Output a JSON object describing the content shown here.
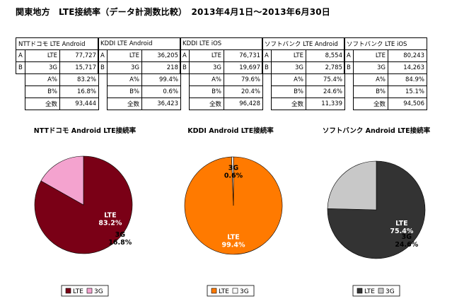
{
  "title": "関東地方　LTE接続率（データ計測数比較）　2013年4月1日～2013年6月30日",
  "tables": [
    {
      "header": "NTTドコモ LTE Android",
      "rows": [
        [
          "A",
          "LTE",
          "77,727"
        ],
        [
          "B",
          "3G",
          "15,717"
        ]
      ],
      "stats": [
        [
          "A%",
          "83.2%"
        ],
        [
          "B%",
          "16.8%"
        ],
        [
          "全数",
          "93,444"
        ]
      ]
    },
    {
      "header": "KDDI LTE Android",
      "rows": [
        [
          "A",
          "LTE",
          "36,205"
        ],
        [
          "B",
          "3G",
          "218"
        ]
      ],
      "stats": [
        [
          "A%",
          "99.4%"
        ],
        [
          "B%",
          "0.6%"
        ],
        [
          "全数",
          "36,423"
        ]
      ]
    },
    {
      "header": "KDDI LTE iOS",
      "rows": [
        [
          "A",
          "LTE",
          "76,731"
        ],
        [
          "B",
          "3G",
          "19,697"
        ]
      ],
      "stats": [
        [
          "A%",
          "79.6%"
        ],
        [
          "B%",
          "20.4%"
        ],
        [
          "全数",
          "96,428"
        ]
      ]
    },
    {
      "header": "ソフトバンク LTE Android",
      "rows": [
        [
          "A",
          "LTE",
          "8,554"
        ],
        [
          "B",
          "3G",
          "2,785"
        ]
      ],
      "stats": [
        [
          "A%",
          "75.4%"
        ],
        [
          "B%",
          "24.6%"
        ],
        [
          "全数",
          "11,339"
        ]
      ]
    },
    {
      "header": "ソフトバンク LTE iOS",
      "rows": [
        [
          "A",
          "LTE",
          "80,243"
        ],
        [
          "B",
          "3G",
          "14,263"
        ]
      ],
      "stats": [
        [
          "A%",
          "84.9%"
        ],
        [
          "B%",
          "15.1%"
        ],
        [
          "全数",
          "94,506"
        ]
      ]
    }
  ],
  "chart_data": [
    {
      "type": "pie",
      "title": "NTTドコモ Android LTE接続率",
      "slices": [
        {
          "name": "LTE",
          "value": 83.2,
          "label": "83.2%",
          "color": "#7a0016"
        },
        {
          "name": "3G",
          "value": 16.8,
          "label": "16.8%",
          "color": "#f4a3cf"
        }
      ]
    },
    {
      "type": "pie",
      "title": "KDDI Android LTE接続率",
      "slices": [
        {
          "name": "LTE",
          "value": 99.4,
          "label": "99.4%",
          "color": "#ff7a00"
        },
        {
          "name": "3G",
          "value": 0.6,
          "label": "0.6%",
          "color": "#ffffff"
        }
      ]
    },
    {
      "type": "pie",
      "title": "ソフトバンク Android LTE接続率",
      "slices": [
        {
          "name": "LTE",
          "value": 75.4,
          "label": "75.4%",
          "color": "#333333"
        },
        {
          "name": "3G",
          "value": 24.6,
          "label": "24.6%",
          "color": "#c8c8c8"
        }
      ]
    }
  ]
}
